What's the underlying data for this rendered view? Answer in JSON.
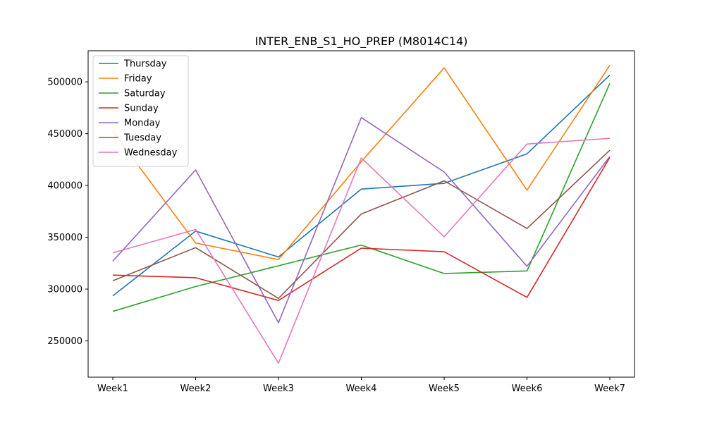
{
  "chart_data": {
    "type": "line",
    "title": "INTER_ENB_S1_HO_PREP (M8014C14)",
    "xlabel": "",
    "ylabel": "",
    "categories": [
      "Week1",
      "Week2",
      "Week3",
      "Week4",
      "Week5",
      "Week6",
      "Week7"
    ],
    "ylim": [
      215000,
      530000
    ],
    "yticks": [
      250000,
      300000,
      350000,
      400000,
      450000,
      500000
    ],
    "ytick_labels": [
      "250000",
      "300000",
      "350000",
      "400000",
      "450000",
      "500000"
    ],
    "grid": false,
    "legend_position": "top-left",
    "series": [
      {
        "name": "Thursday",
        "color": "#1f77b4",
        "values": [
          293500,
          356000,
          331000,
          396500,
          402000,
          430500,
          506500
        ]
      },
      {
        "name": "Friday",
        "color": "#ff7f0e",
        "values": [
          452500,
          344500,
          328500,
          423000,
          513500,
          395500,
          516000
        ]
      },
      {
        "name": "Saturday",
        "color": "#2ca02c",
        "values": [
          278500,
          302500,
          322500,
          342500,
          315000,
          317500,
          498500
        ]
      },
      {
        "name": "Sunday",
        "color": "#d62728",
        "values": [
          313500,
          311000,
          289000,
          339500,
          336000,
          292000,
          427000
        ]
      },
      {
        "name": "Monday",
        "color": "#9467bd",
        "values": [
          327000,
          415000,
          267500,
          465500,
          413000,
          322000,
          428000
        ]
      },
      {
        "name": "Tuesday",
        "color": "#8c564b",
        "values": [
          308000,
          340000,
          291000,
          372500,
          404500,
          358500,
          434000
        ]
      },
      {
        "name": "Wednesday",
        "color": "#e377c2",
        "values": [
          335000,
          357500,
          228500,
          426500,
          350500,
          440000,
          445500
        ]
      }
    ]
  }
}
